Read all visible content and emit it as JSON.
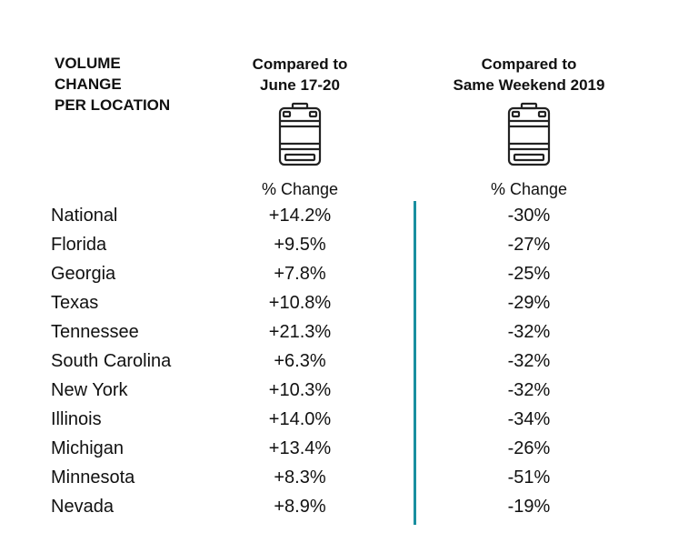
{
  "header": {
    "title_lines": [
      "VOLUME",
      "CHANGE",
      "PER LOCATION"
    ],
    "col1_lines": [
      "Compared to",
      "June 17-20"
    ],
    "col2_lines": [
      "Compared to",
      "Same Weekend 2019"
    ],
    "col1_sub": "% Change",
    "col2_sub": "% Change"
  },
  "icons": [
    "keg-icon",
    "keg-icon"
  ],
  "colors": {
    "divider": "#1a8fa0",
    "text": "#111111"
  },
  "rows": [
    {
      "location": "National",
      "vs_june": "+14.2%",
      "vs_2019": "-30%"
    },
    {
      "location": "Florida",
      "vs_june": "+9.5%",
      "vs_2019": "-27%"
    },
    {
      "location": "Georgia",
      "vs_june": "+7.8%",
      "vs_2019": "-25%"
    },
    {
      "location": "Texas",
      "vs_june": "+10.8%",
      "vs_2019": "-29%"
    },
    {
      "location": "Tennessee",
      "vs_june": "+21.3%",
      "vs_2019": "-32%"
    },
    {
      "location": "South Carolina",
      "vs_june": "+6.3%",
      "vs_2019": "-32%"
    },
    {
      "location": "New York",
      "vs_june": "+10.3%",
      "vs_2019": "-32%"
    },
    {
      "location": "Illinois",
      "vs_june": "+14.0%",
      "vs_2019": "-34%"
    },
    {
      "location": "Michigan",
      "vs_june": "+13.4%",
      "vs_2019": "-26%"
    },
    {
      "location": "Minnesota",
      "vs_june": "+8.3%",
      "vs_2019": "-51%"
    },
    {
      "location": "Nevada",
      "vs_june": "+8.9%",
      "vs_2019": "-19%"
    }
  ]
}
